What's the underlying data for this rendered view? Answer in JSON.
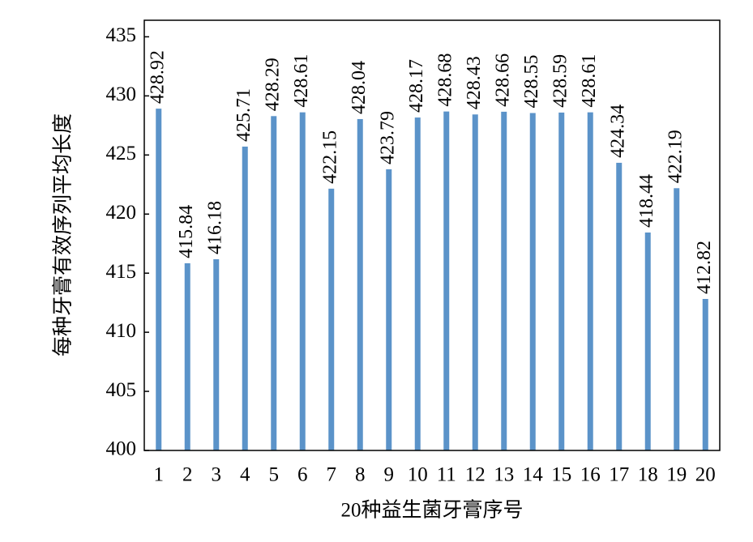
{
  "chart_data": {
    "type": "bar",
    "x_label": "20种益生菌牙膏序号",
    "y_label": "每种牙膏有效序列平均长度",
    "categories": [
      "1",
      "2",
      "3",
      "4",
      "5",
      "6",
      "7",
      "8",
      "9",
      "10",
      "11",
      "12",
      "13",
      "14",
      "15",
      "16",
      "17",
      "18",
      "19",
      "20"
    ],
    "values": [
      428.92,
      415.84,
      416.18,
      425.71,
      428.29,
      428.61,
      422.15,
      428.04,
      423.79,
      428.17,
      428.68,
      428.43,
      428.66,
      428.55,
      428.59,
      428.61,
      424.34,
      418.44,
      422.19,
      412.82
    ],
    "color": "#5b93c9",
    "ylim": [
      400,
      436.4
    ],
    "yticks": [
      400,
      405,
      410,
      415,
      420,
      425,
      430,
      435
    ]
  }
}
